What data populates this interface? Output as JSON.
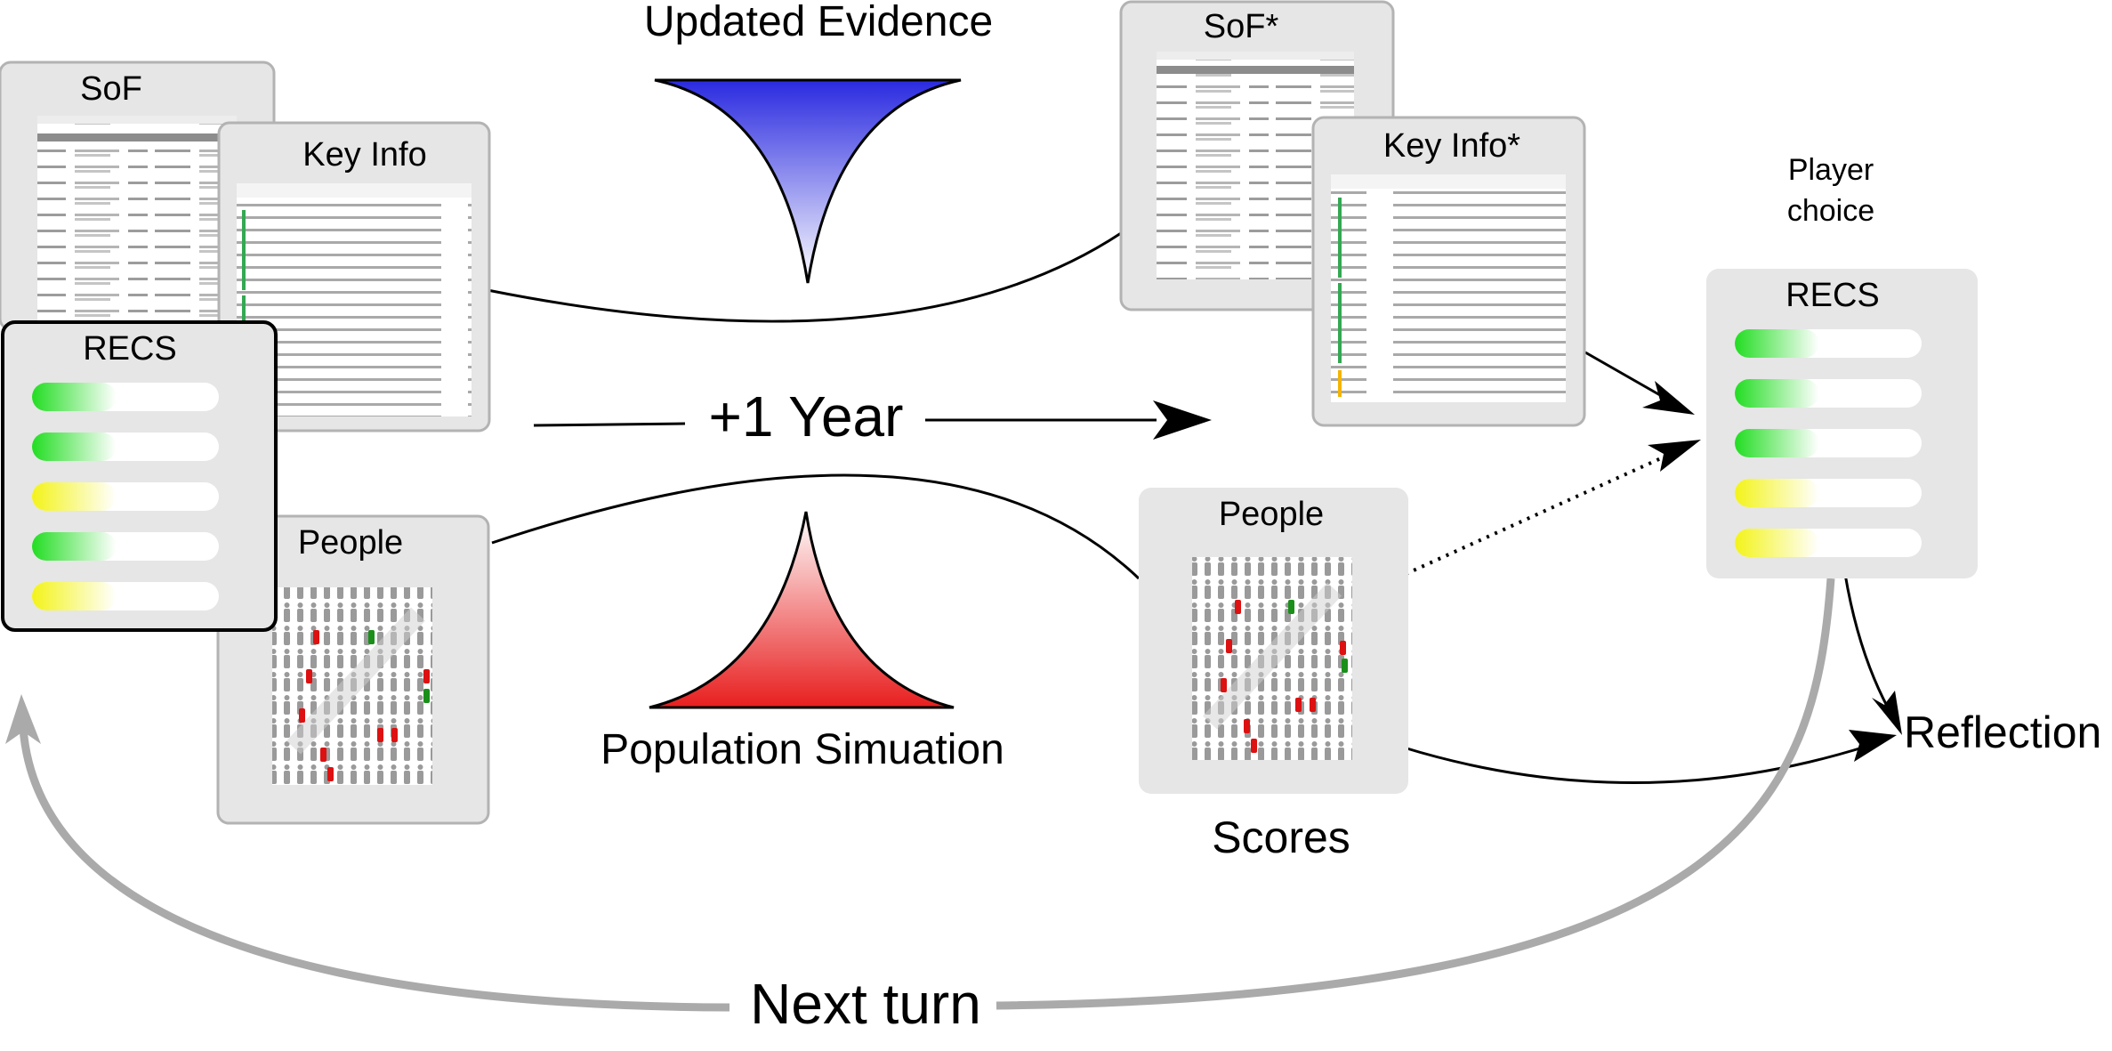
{
  "labels": {
    "updated_evidence": "Updated Evidence",
    "population_simulation": "Population Simuation",
    "plus_one_year": "+1 Year",
    "next_turn": "Next turn",
    "reflection": "Reflection",
    "scores": "Scores",
    "player_choice_line1": "Player",
    "player_choice_line2": "choice"
  },
  "cards": {
    "sof": "SoF",
    "key_info": "Key Info",
    "recs_left": "RECS",
    "people_left": "People",
    "sof_star": "SoF*",
    "key_info_star": "Key Info*",
    "people_right": "People",
    "recs_right": "RECS"
  },
  "recs_left_levels": [
    {
      "color": "green",
      "level": 0.45
    },
    {
      "color": "green",
      "level": 0.45
    },
    {
      "color": "yellow",
      "level": 0.45
    },
    {
      "color": "green",
      "level": 0.45
    },
    {
      "color": "yellow",
      "level": 0.45
    }
  ],
  "recs_right_levels": [
    {
      "color": "green",
      "level": 0.45
    },
    {
      "color": "green",
      "level": 0.45
    },
    {
      "color": "green",
      "level": 0.45
    },
    {
      "color": "yellow",
      "level": 0.45
    },
    {
      "color": "yellow",
      "level": 0.45
    }
  ],
  "colors": {
    "card_bg": "#e6e6e6",
    "card_border": "#b3b3b3",
    "evidence_arrow": "#2a2ae0",
    "simulation_arrow": "#e81e1e",
    "loop_arrow": "#aaaaaa",
    "bar_green": "#22dd22",
    "bar_yellow": "#f3f31a"
  }
}
